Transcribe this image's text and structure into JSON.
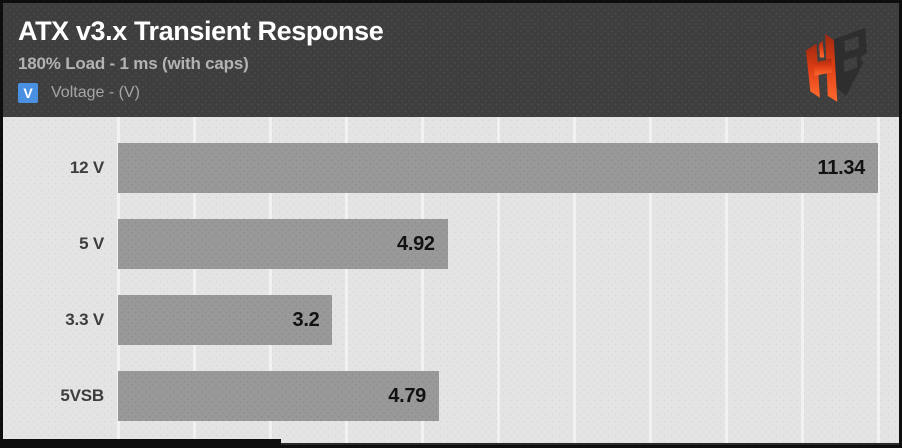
{
  "header": {
    "title": "ATX v3.x Transient Response",
    "subtitle": "180% Load - 1 ms (with caps)",
    "legend": {
      "symbol": "V",
      "label": "Voltage - (V)",
      "marker_color": "#4a90e2"
    },
    "logo_name": "hwbusters-hb-logo"
  },
  "chart_data": {
    "type": "bar",
    "orientation": "horizontal",
    "title": "ATX v3.x Transient Response",
    "subtitle": "180% Load - 1 ms (with caps)",
    "series_name": "Voltage - (V)",
    "categories": [
      "12 V",
      "5 V",
      "3.3 V",
      "5VSB"
    ],
    "values": [
      11.34,
      4.92,
      3.2,
      4.79
    ],
    "value_labels": [
      "11.34",
      "4.92",
      "3.2",
      "4.79"
    ],
    "xlim": [
      0,
      11.34
    ],
    "grid": true,
    "grid_divisions": 10,
    "legend_position": "top-left",
    "bar_color": "#999999",
    "plot_background": "#e4e4e4",
    "header_background": "#3e3e3e",
    "value_label_color": "#121212"
  },
  "colors": {
    "accent_blue": "#4a90e2",
    "logo_red_top": "#a63012",
    "logo_orange_bottom": "#ff6a2e",
    "logo_dark": "#2e2e2e",
    "frame_border": "#0e0e0e"
  }
}
